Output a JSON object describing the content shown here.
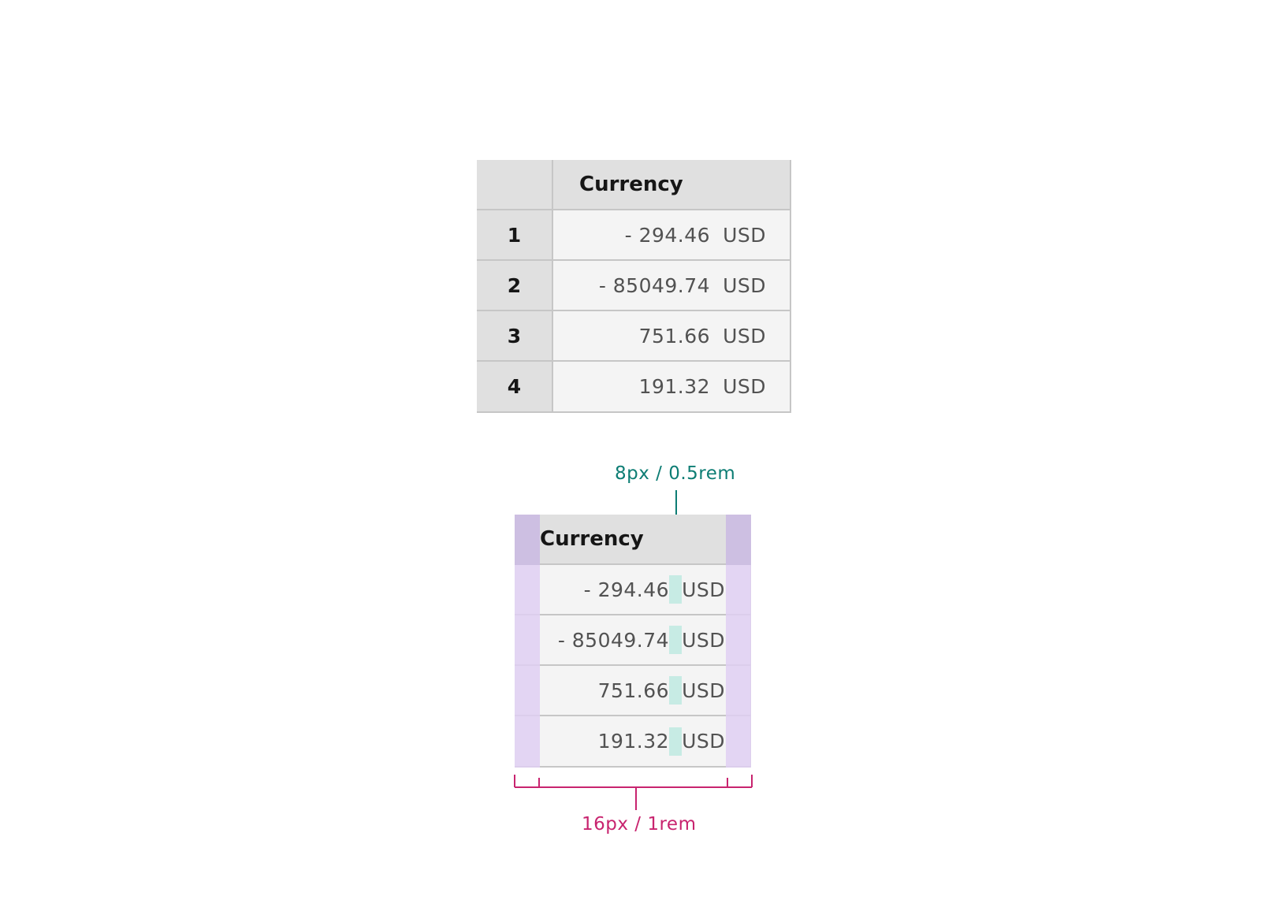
{
  "table": {
    "column_header": "Currency",
    "rows": [
      {
        "index": "1",
        "amount": "- 294.46",
        "currency": "USD"
      },
      {
        "index": "2",
        "amount": "- 85049.74",
        "currency": "USD"
      },
      {
        "index": "3",
        "amount": "751.66",
        "currency": "USD"
      },
      {
        "index": "4",
        "amount": "191.32",
        "currency": "USD"
      }
    ]
  },
  "spec_table": {
    "column_header": "Currency",
    "rows": [
      {
        "amount": "- 294.46",
        "currency": "USD"
      },
      {
        "amount": "- 85049.74",
        "currency": "USD"
      },
      {
        "amount": "751.66",
        "currency": "USD"
      },
      {
        "amount": "191.32",
        "currency": "USD"
      }
    ]
  },
  "annotations": {
    "gap_spacing": "8px / 0.5rem",
    "cell_padding": "16px / 1rem"
  },
  "colors": {
    "header_bg": "#e0e0e0",
    "cell_bg": "#f4f4f4",
    "padding_highlight": "#dfcff2",
    "gap_highlight": "#c7ebe4",
    "teal_annotation": "#0d7d74",
    "pink_annotation": "#c8246f"
  }
}
